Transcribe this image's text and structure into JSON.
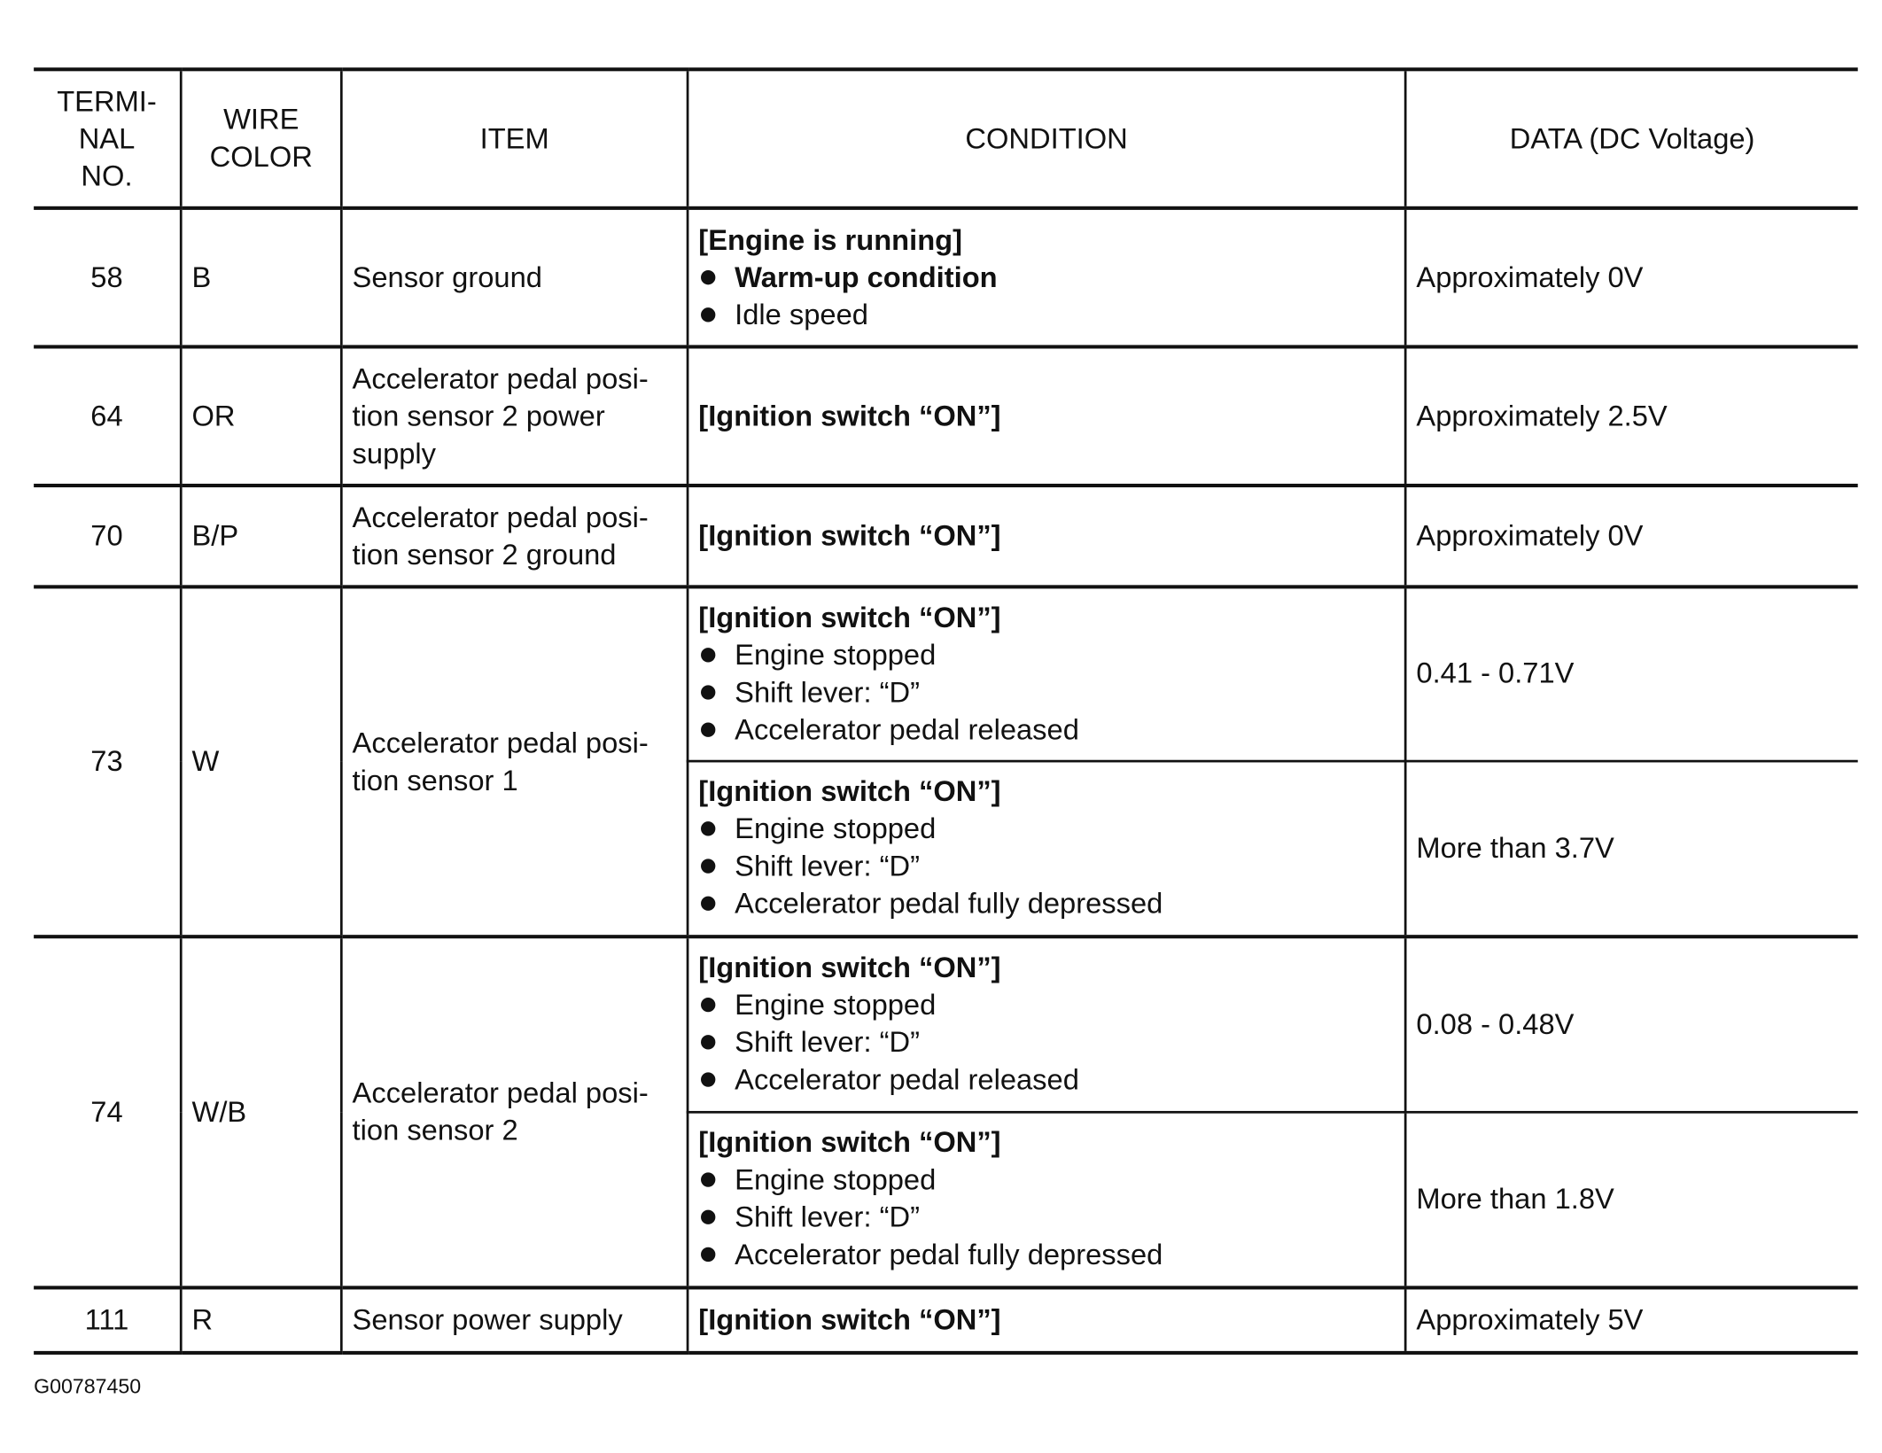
{
  "headers": {
    "terminal": "TERMI-\nNAL\nNO.",
    "wire_color": "WIRE\nCOLOR",
    "item": "ITEM",
    "condition": "CONDITION",
    "data": "DATA (DC Voltage)"
  },
  "rows": [
    {
      "terminal": "58",
      "wire": "B",
      "item": "Sensor ground",
      "conditions": [
        {
          "header": "[Engine is running]",
          "bullets": [
            {
              "text": "Warm-up condition",
              "bold": true
            },
            {
              "text": "Idle speed",
              "bold": false
            }
          ],
          "data": "Approximately 0V"
        }
      ]
    },
    {
      "terminal": "64",
      "wire": "OR",
      "item": "Accelerator pedal posi-\ntion sensor 2 power\nsupply",
      "conditions": [
        {
          "header": "[Ignition switch “ON”]",
          "bullets": [],
          "data": "Approximately 2.5V"
        }
      ]
    },
    {
      "terminal": "70",
      "wire": "B/P",
      "item": "Accelerator pedal posi-\ntion sensor 2 ground",
      "conditions": [
        {
          "header": "[Ignition switch “ON”]",
          "bullets": [],
          "data": "Approximately 0V"
        }
      ]
    },
    {
      "terminal": "73",
      "wire": "W",
      "item": "Accelerator pedal posi-\ntion sensor 1",
      "conditions": [
        {
          "header": "[Ignition switch “ON”]",
          "bullets": [
            {
              "text": "Engine stopped"
            },
            {
              "text": "Shift lever: “D”"
            },
            {
              "text": "Accelerator pedal released"
            }
          ],
          "data": "0.41 - 0.71V"
        },
        {
          "header": "[Ignition switch “ON”]",
          "bullets": [
            {
              "text": "Engine stopped"
            },
            {
              "text": "Shift lever: “D”"
            },
            {
              "text": "Accelerator pedal fully depressed"
            }
          ],
          "data": "More than 3.7V"
        }
      ]
    },
    {
      "terminal": "74",
      "wire": "W/B",
      "item": "Accelerator pedal posi-\ntion sensor 2",
      "conditions": [
        {
          "header": "[Ignition switch “ON”]",
          "bullets": [
            {
              "text": "Engine stopped"
            },
            {
              "text": "Shift lever: “D”"
            },
            {
              "text": "Accelerator pedal released"
            }
          ],
          "data": "0.08 - 0.48V"
        },
        {
          "header": "[Ignition switch “ON”]",
          "bullets": [
            {
              "text": "Engine stopped"
            },
            {
              "text": "Shift lever: “D”"
            },
            {
              "text": "Accelerator pedal fully depressed"
            }
          ],
          "data": "More than 1.8V"
        }
      ]
    },
    {
      "terminal": "111",
      "wire": "R",
      "item": "Sensor power supply",
      "conditions": [
        {
          "header": "[Ignition switch “ON”]",
          "bullets": [],
          "data": "Approximately 5V"
        }
      ]
    }
  ],
  "figure_code": "G00787450"
}
